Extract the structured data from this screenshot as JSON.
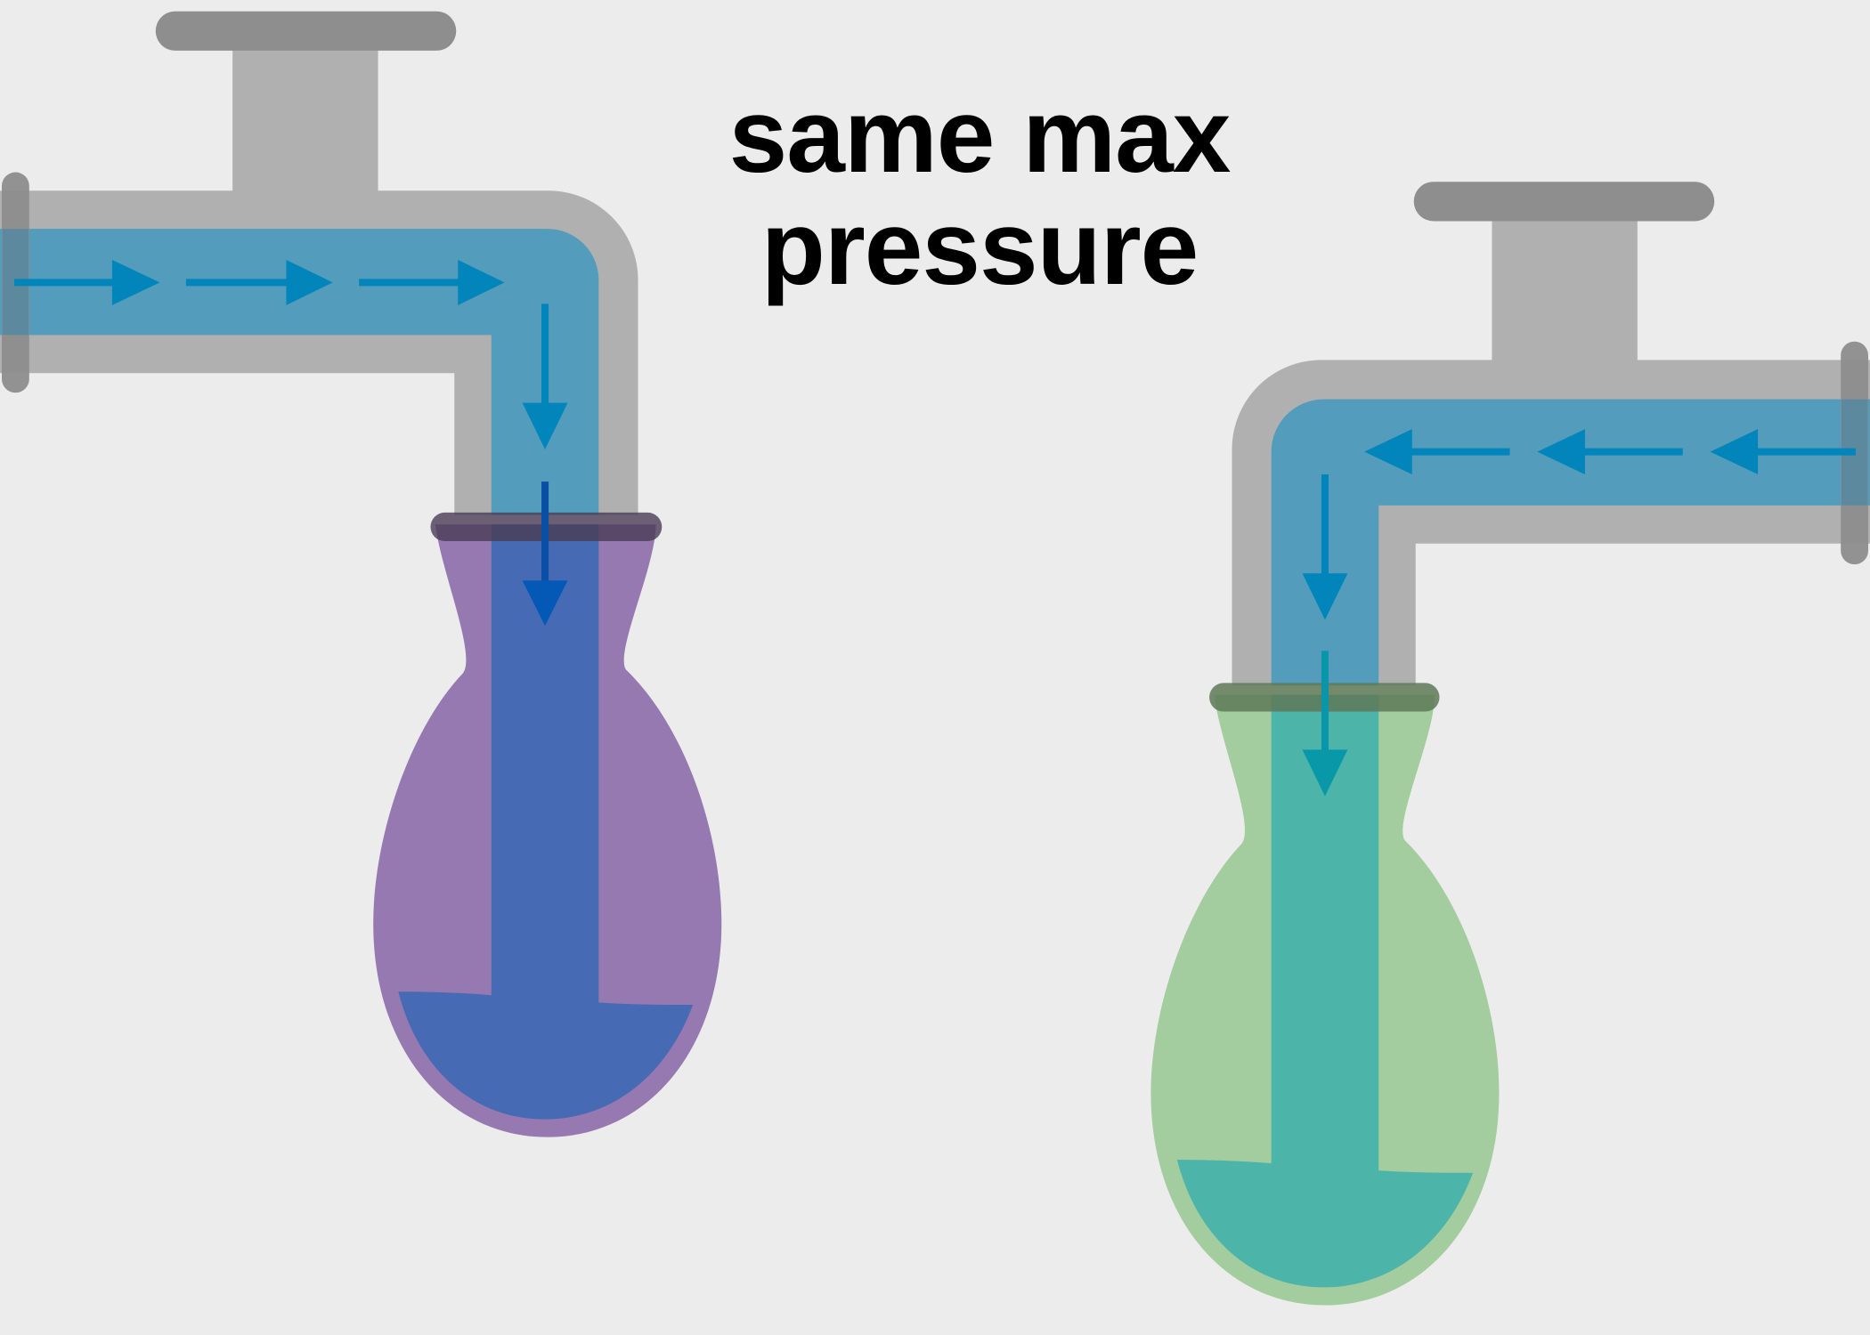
{
  "title": {
    "line1": "same max",
    "line2": "pressure"
  },
  "colors": {
    "background": "#ececec",
    "pipe": "#b0b0b0",
    "handle": "#8e8e8e",
    "water": "#2a9ccc",
    "arrow": "#0285ba",
    "balloon_left": "#8758a3",
    "balloon_right": "#8bc58a",
    "clamp_left": "#4a3d55",
    "clamp_right": "#5e7a58"
  },
  "icons": {
    "flow_arrow": "arrow-icon",
    "valve_handle": "valve-handle-icon"
  }
}
